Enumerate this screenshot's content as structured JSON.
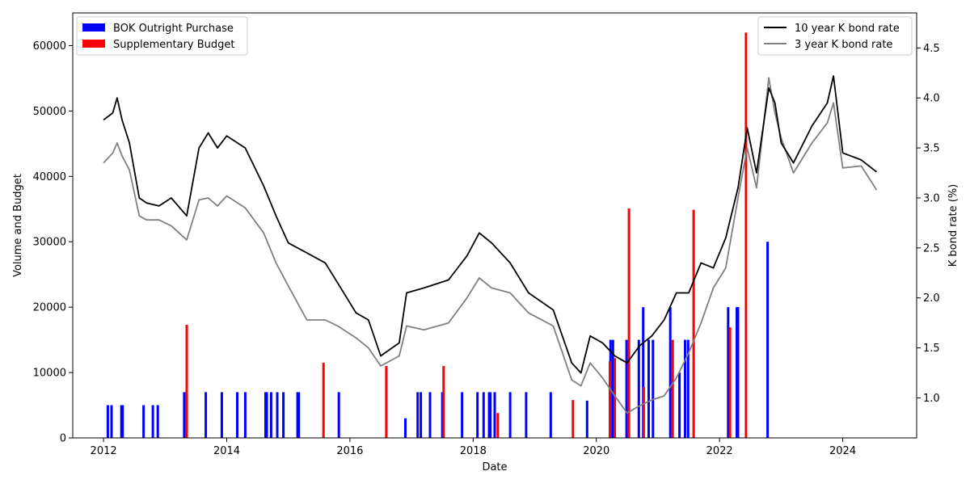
{
  "chart_data": {
    "type": "bar+line",
    "x_axis": {
      "label": "Date",
      "ticks": [
        "2012",
        "2014",
        "2016",
        "2018",
        "2020",
        "2022",
        "2024"
      ],
      "range": [
        "2011-06",
        "2025-02"
      ]
    },
    "y_left": {
      "label": "Volume and Budget",
      "range": [
        0,
        65000
      ],
      "ticks": [
        0,
        10000,
        20000,
        30000,
        40000,
        50000,
        60000
      ]
    },
    "y_right": {
      "label": "K bond rate (%)",
      "range": [
        0.6,
        4.85
      ],
      "ticks": [
        "1.0",
        "1.5",
        "2.0",
        "2.5",
        "3.0",
        "3.5",
        "4.0",
        "4.5"
      ]
    },
    "legend_bars": {
      "placement": "upper-left",
      "items": [
        {
          "name": "BOK Outright Purchase",
          "color": "#0000ff"
        },
        {
          "name": "Supplementary Budget",
          "color": "#ff0000"
        }
      ]
    },
    "legend_lines": {
      "placement": "upper-right",
      "items": [
        {
          "name": "10 year K bond rate",
          "color": "#000000"
        },
        {
          "name": "3 year K bond rate",
          "color": "#808080"
        }
      ]
    },
    "bok_purchases": [
      {
        "date": "2012.07",
        "value": 5000
      },
      {
        "date": "2012.13",
        "value": 5000
      },
      {
        "date": "2012.29",
        "value": 5000
      },
      {
        "date": "2012.31",
        "value": 5000
      },
      {
        "date": "2012.65",
        "value": 5000
      },
      {
        "date": "2012.80",
        "value": 5000
      },
      {
        "date": "2012.88",
        "value": 5000
      },
      {
        "date": "2013.31",
        "value": 7000
      },
      {
        "date": "2013.66",
        "value": 7000
      },
      {
        "date": "2013.92",
        "value": 7000
      },
      {
        "date": "2014.17",
        "value": 7000
      },
      {
        "date": "2014.30",
        "value": 7000
      },
      {
        "date": "2014.63",
        "value": 7000
      },
      {
        "date": "2014.65",
        "value": 7000
      },
      {
        "date": "2014.72",
        "value": 7000
      },
      {
        "date": "2014.82",
        "value": 7000
      },
      {
        "date": "2014.92",
        "value": 7000
      },
      {
        "date": "2015.15",
        "value": 7000
      },
      {
        "date": "2015.17",
        "value": 7000
      },
      {
        "date": "2015.82",
        "value": 7000
      },
      {
        "date": "2016.90",
        "value": 3000
      },
      {
        "date": "2017.10",
        "value": 7000
      },
      {
        "date": "2017.15",
        "value": 7000
      },
      {
        "date": "2017.30",
        "value": 7000
      },
      {
        "date": "2017.50",
        "value": 7000
      },
      {
        "date": "2017.82",
        "value": 7000
      },
      {
        "date": "2018.07",
        "value": 7000
      },
      {
        "date": "2018.17",
        "value": 7000
      },
      {
        "date": "2018.26",
        "value": 7000
      },
      {
        "date": "2018.28",
        "value": 7000
      },
      {
        "date": "2018.35",
        "value": 7000
      },
      {
        "date": "2018.60",
        "value": 7000
      },
      {
        "date": "2018.86",
        "value": 7000
      },
      {
        "date": "2019.26",
        "value": 7000
      },
      {
        "date": "2019.85",
        "value": 5700
      },
      {
        "date": "2020.23",
        "value": 15000
      },
      {
        "date": "2020.27",
        "value": 15000
      },
      {
        "date": "2020.49",
        "value": 15000
      },
      {
        "date": "2020.69",
        "value": 15000
      },
      {
        "date": "2020.76",
        "value": 20000
      },
      {
        "date": "2020.85",
        "value": 15000
      },
      {
        "date": "2020.92",
        "value": 15000
      },
      {
        "date": "2021.20",
        "value": 20000
      },
      {
        "date": "2021.35",
        "value": 10000
      },
      {
        "date": "2021.44",
        "value": 15000
      },
      {
        "date": "2021.49",
        "value": 15000
      },
      {
        "date": "2022.14",
        "value": 20000
      },
      {
        "date": "2022.28",
        "value": 20000
      },
      {
        "date": "2022.30",
        "value": 20000
      },
      {
        "date": "2022.78",
        "value": 30000
      }
    ],
    "supplementary_budgets": [
      {
        "date": "2013.35",
        "value": 17300
      },
      {
        "date": "2015.57",
        "value": 11500
      },
      {
        "date": "2016.59",
        "value": 11000
      },
      {
        "date": "2017.52",
        "value": 11000
      },
      {
        "date": "2018.40",
        "value": 3800
      },
      {
        "date": "2019.62",
        "value": 5800
      },
      {
        "date": "2020.22",
        "value": 11700
      },
      {
        "date": "2020.30",
        "value": 12200
      },
      {
        "date": "2020.53",
        "value": 35100
      },
      {
        "date": "2020.77",
        "value": 7800
      },
      {
        "date": "2021.24",
        "value": 15000
      },
      {
        "date": "2021.58",
        "value": 34900
      },
      {
        "date": "2022.17",
        "value": 16900
      },
      {
        "date": "2022.43",
        "value": 62000
      }
    ],
    "rate_10y": [
      [
        "2012.00",
        3.78
      ],
      [
        "2012.15",
        3.85
      ],
      [
        "2012.22",
        4.0
      ],
      [
        "2012.30",
        3.78
      ],
      [
        "2012.42",
        3.55
      ],
      [
        "2012.58",
        3.0
      ],
      [
        "2012.70",
        2.95
      ],
      [
        "2012.90",
        2.92
      ],
      [
        "2013.10",
        3.0
      ],
      [
        "2013.35",
        2.82
      ],
      [
        "2013.55",
        3.5
      ],
      [
        "2013.70",
        3.65
      ],
      [
        "2013.85",
        3.5
      ],
      [
        "2014.00",
        3.62
      ],
      [
        "2014.30",
        3.5
      ],
      [
        "2014.60",
        3.12
      ],
      [
        "2014.80",
        2.82
      ],
      [
        "2015.00",
        2.55
      ],
      [
        "2015.30",
        2.45
      ],
      [
        "2015.60",
        2.35
      ],
      [
        "2015.80",
        2.15
      ],
      [
        "2016.10",
        1.85
      ],
      [
        "2016.30",
        1.78
      ],
      [
        "2016.50",
        1.42
      ],
      [
        "2016.80",
        1.55
      ],
      [
        "2016.92",
        2.05
      ],
      [
        "2017.20",
        2.1
      ],
      [
        "2017.60",
        2.18
      ],
      [
        "2017.90",
        2.42
      ],
      [
        "2018.10",
        2.65
      ],
      [
        "2018.30",
        2.55
      ],
      [
        "2018.60",
        2.35
      ],
      [
        "2018.90",
        2.05
      ],
      [
        "2019.30",
        1.88
      ],
      [
        "2019.60",
        1.35
      ],
      [
        "2019.75",
        1.25
      ],
      [
        "2019.90",
        1.62
      ],
      [
        "2020.10",
        1.55
      ],
      [
        "2020.30",
        1.42
      ],
      [
        "2020.50",
        1.35
      ],
      [
        "2020.70",
        1.52
      ],
      [
        "2020.90",
        1.62
      ],
      [
        "2021.10",
        1.78
      ],
      [
        "2021.30",
        2.05
      ],
      [
        "2021.50",
        2.05
      ],
      [
        "2021.70",
        2.35
      ],
      [
        "2021.90",
        2.3
      ],
      [
        "2022.10",
        2.6
      ],
      [
        "2022.30",
        3.1
      ],
      [
        "2022.45",
        3.7
      ],
      [
        "2022.60",
        3.25
      ],
      [
        "2022.80",
        4.1
      ],
      [
        "2022.90",
        3.95
      ],
      [
        "2023.00",
        3.55
      ],
      [
        "2023.20",
        3.35
      ],
      [
        "2023.50",
        3.72
      ],
      [
        "2023.75",
        3.95
      ],
      [
        "2023.85",
        4.22
      ],
      [
        "2024.00",
        3.45
      ],
      [
        "2024.30",
        3.38
      ],
      [
        "2024.55",
        3.26
      ]
    ],
    "rate_3y": [
      [
        "2012.00",
        3.35
      ],
      [
        "2012.15",
        3.45
      ],
      [
        "2012.22",
        3.55
      ],
      [
        "2012.30",
        3.42
      ],
      [
        "2012.42",
        3.28
      ],
      [
        "2012.58",
        2.82
      ],
      [
        "2012.70",
        2.78
      ],
      [
        "2012.90",
        2.78
      ],
      [
        "2013.10",
        2.72
      ],
      [
        "2013.35",
        2.58
      ],
      [
        "2013.55",
        2.98
      ],
      [
        "2013.70",
        3.0
      ],
      [
        "2013.85",
        2.92
      ],
      [
        "2014.00",
        3.02
      ],
      [
        "2014.30",
        2.9
      ],
      [
        "2014.60",
        2.65
      ],
      [
        "2014.80",
        2.35
      ],
      [
        "2015.00",
        2.12
      ],
      [
        "2015.30",
        1.78
      ],
      [
        "2015.60",
        1.78
      ],
      [
        "2015.80",
        1.72
      ],
      [
        "2016.10",
        1.6
      ],
      [
        "2016.30",
        1.5
      ],
      [
        "2016.50",
        1.32
      ],
      [
        "2016.80",
        1.42
      ],
      [
        "2016.92",
        1.72
      ],
      [
        "2017.20",
        1.68
      ],
      [
        "2017.60",
        1.75
      ],
      [
        "2017.90",
        2.0
      ],
      [
        "2018.10",
        2.2
      ],
      [
        "2018.30",
        2.1
      ],
      [
        "2018.60",
        2.05
      ],
      [
        "2018.90",
        1.85
      ],
      [
        "2019.30",
        1.72
      ],
      [
        "2019.60",
        1.18
      ],
      [
        "2019.75",
        1.12
      ],
      [
        "2019.90",
        1.35
      ],
      [
        "2020.10",
        1.2
      ],
      [
        "2020.30",
        1.02
      ],
      [
        "2020.50",
        0.85
      ],
      [
        "2020.70",
        0.92
      ],
      [
        "2020.90",
        0.98
      ],
      [
        "2021.10",
        1.02
      ],
      [
        "2021.30",
        1.2
      ],
      [
        "2021.50",
        1.45
      ],
      [
        "2021.70",
        1.75
      ],
      [
        "2021.90",
        2.1
      ],
      [
        "2022.10",
        2.3
      ],
      [
        "2022.30",
        3.0
      ],
      [
        "2022.45",
        3.5
      ],
      [
        "2022.60",
        3.1
      ],
      [
        "2022.80",
        4.2
      ],
      [
        "2022.90",
        3.85
      ],
      [
        "2023.00",
        3.6
      ],
      [
        "2023.20",
        3.25
      ],
      [
        "2023.50",
        3.55
      ],
      [
        "2023.75",
        3.75
      ],
      [
        "2023.85",
        3.95
      ],
      [
        "2024.00",
        3.3
      ],
      [
        "2024.30",
        3.32
      ],
      [
        "2024.55",
        3.08
      ]
    ]
  }
}
